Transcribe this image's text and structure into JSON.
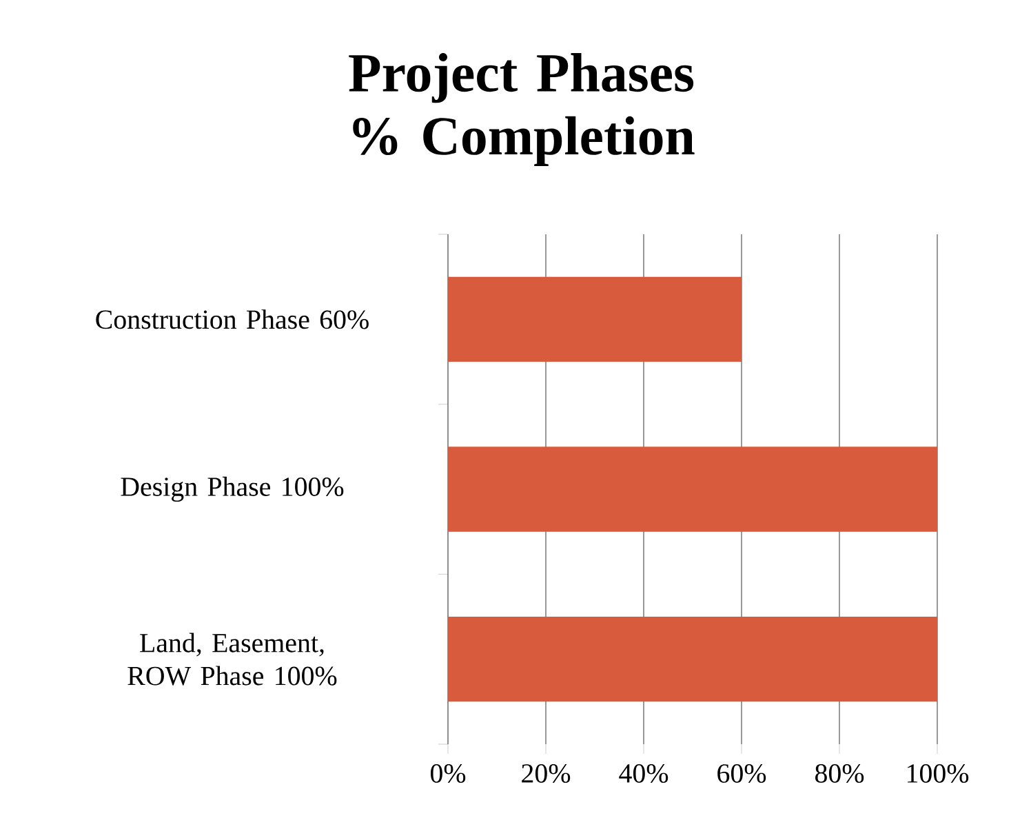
{
  "chart_data": {
    "type": "bar",
    "orientation": "horizontal",
    "title": "Project Phases % Completion",
    "categories": [
      "Construction Phase  60%",
      "Design Phase 100%",
      "Land, Easement, ROW Phase 100%"
    ],
    "values": [
      60,
      100,
      100
    ],
    "color": "#d95b3e",
    "xlim": [
      0,
      100
    ],
    "xticks": [
      {
        "value": 0,
        "label": "0%"
      },
      {
        "value": 20,
        "label": "20%"
      },
      {
        "value": 40,
        "label": "40%"
      },
      {
        "value": 60,
        "label": "60%"
      },
      {
        "value": 80,
        "label": "80%"
      },
      {
        "value": 100,
        "label": "100%"
      }
    ],
    "grid": "x"
  }
}
